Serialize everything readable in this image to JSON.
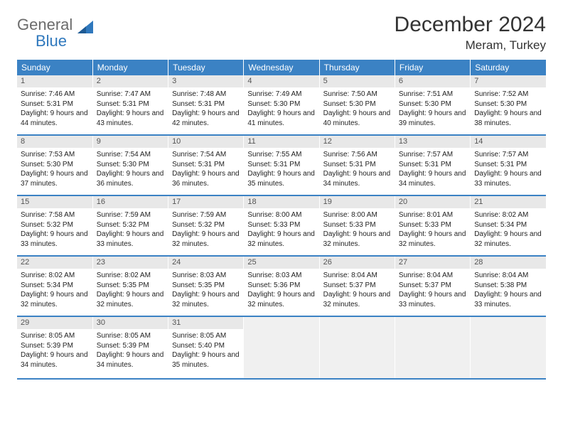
{
  "brand": {
    "part1": "General",
    "part2": "Blue"
  },
  "title": "December 2024",
  "location": "Meram, Turkey",
  "colors": {
    "header_bg": "#3b82c4",
    "header_text": "#ffffff",
    "daynum_bg": "#e8e8e8",
    "row_divider": "#3b82c4",
    "logo_gray": "#6b6b6b",
    "logo_blue": "#2f78bd"
  },
  "weekdays": [
    "Sunday",
    "Monday",
    "Tuesday",
    "Wednesday",
    "Thursday",
    "Friday",
    "Saturday"
  ],
  "weeks": [
    [
      {
        "n": "1",
        "sr": "7:46 AM",
        "ss": "5:31 PM",
        "dl": "9 hours and 44 minutes."
      },
      {
        "n": "2",
        "sr": "7:47 AM",
        "ss": "5:31 PM",
        "dl": "9 hours and 43 minutes."
      },
      {
        "n": "3",
        "sr": "7:48 AM",
        "ss": "5:31 PM",
        "dl": "9 hours and 42 minutes."
      },
      {
        "n": "4",
        "sr": "7:49 AM",
        "ss": "5:30 PM",
        "dl": "9 hours and 41 minutes."
      },
      {
        "n": "5",
        "sr": "7:50 AM",
        "ss": "5:30 PM",
        "dl": "9 hours and 40 minutes."
      },
      {
        "n": "6",
        "sr": "7:51 AM",
        "ss": "5:30 PM",
        "dl": "9 hours and 39 minutes."
      },
      {
        "n": "7",
        "sr": "7:52 AM",
        "ss": "5:30 PM",
        "dl": "9 hours and 38 minutes."
      }
    ],
    [
      {
        "n": "8",
        "sr": "7:53 AM",
        "ss": "5:30 PM",
        "dl": "9 hours and 37 minutes."
      },
      {
        "n": "9",
        "sr": "7:54 AM",
        "ss": "5:30 PM",
        "dl": "9 hours and 36 minutes."
      },
      {
        "n": "10",
        "sr": "7:54 AM",
        "ss": "5:31 PM",
        "dl": "9 hours and 36 minutes."
      },
      {
        "n": "11",
        "sr": "7:55 AM",
        "ss": "5:31 PM",
        "dl": "9 hours and 35 minutes."
      },
      {
        "n": "12",
        "sr": "7:56 AM",
        "ss": "5:31 PM",
        "dl": "9 hours and 34 minutes."
      },
      {
        "n": "13",
        "sr": "7:57 AM",
        "ss": "5:31 PM",
        "dl": "9 hours and 34 minutes."
      },
      {
        "n": "14",
        "sr": "7:57 AM",
        "ss": "5:31 PM",
        "dl": "9 hours and 33 minutes."
      }
    ],
    [
      {
        "n": "15",
        "sr": "7:58 AM",
        "ss": "5:32 PM",
        "dl": "9 hours and 33 minutes."
      },
      {
        "n": "16",
        "sr": "7:59 AM",
        "ss": "5:32 PM",
        "dl": "9 hours and 33 minutes."
      },
      {
        "n": "17",
        "sr": "7:59 AM",
        "ss": "5:32 PM",
        "dl": "9 hours and 32 minutes."
      },
      {
        "n": "18",
        "sr": "8:00 AM",
        "ss": "5:33 PM",
        "dl": "9 hours and 32 minutes."
      },
      {
        "n": "19",
        "sr": "8:00 AM",
        "ss": "5:33 PM",
        "dl": "9 hours and 32 minutes."
      },
      {
        "n": "20",
        "sr": "8:01 AM",
        "ss": "5:33 PM",
        "dl": "9 hours and 32 minutes."
      },
      {
        "n": "21",
        "sr": "8:02 AM",
        "ss": "5:34 PM",
        "dl": "9 hours and 32 minutes."
      }
    ],
    [
      {
        "n": "22",
        "sr": "8:02 AM",
        "ss": "5:34 PM",
        "dl": "9 hours and 32 minutes."
      },
      {
        "n": "23",
        "sr": "8:02 AM",
        "ss": "5:35 PM",
        "dl": "9 hours and 32 minutes."
      },
      {
        "n": "24",
        "sr": "8:03 AM",
        "ss": "5:35 PM",
        "dl": "9 hours and 32 minutes."
      },
      {
        "n": "25",
        "sr": "8:03 AM",
        "ss": "5:36 PM",
        "dl": "9 hours and 32 minutes."
      },
      {
        "n": "26",
        "sr": "8:04 AM",
        "ss": "5:37 PM",
        "dl": "9 hours and 32 minutes."
      },
      {
        "n": "27",
        "sr": "8:04 AM",
        "ss": "5:37 PM",
        "dl": "9 hours and 33 minutes."
      },
      {
        "n": "28",
        "sr": "8:04 AM",
        "ss": "5:38 PM",
        "dl": "9 hours and 33 minutes."
      }
    ],
    [
      {
        "n": "29",
        "sr": "8:05 AM",
        "ss": "5:39 PM",
        "dl": "9 hours and 34 minutes."
      },
      {
        "n": "30",
        "sr": "8:05 AM",
        "ss": "5:39 PM",
        "dl": "9 hours and 34 minutes."
      },
      {
        "n": "31",
        "sr": "8:05 AM",
        "ss": "5:40 PM",
        "dl": "9 hours and 35 minutes."
      },
      null,
      null,
      null,
      null
    ]
  ],
  "labels": {
    "sunrise": "Sunrise:",
    "sunset": "Sunset:",
    "daylight": "Daylight:"
  }
}
